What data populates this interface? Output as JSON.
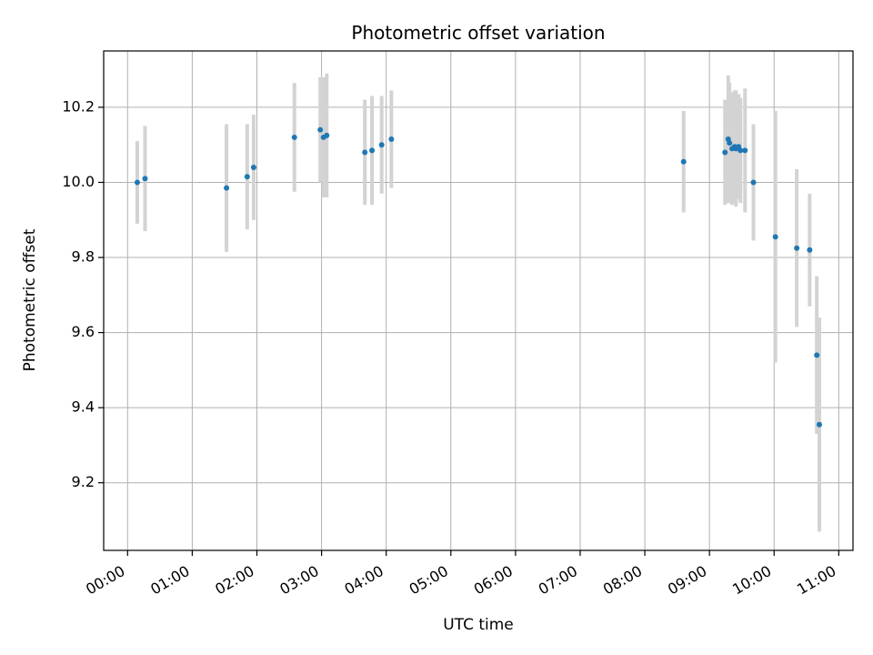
{
  "chart_data": {
    "type": "scatter",
    "title": "Photometric offset variation",
    "xlabel": "UTC time",
    "ylabel": "Photometric offset",
    "x_unit": "hours",
    "xlim": [
      -0.37,
      11.22
    ],
    "ylim": [
      9.02,
      10.35
    ],
    "x_ticks": [
      0,
      1,
      2,
      3,
      4,
      5,
      6,
      7,
      8,
      9,
      10,
      11
    ],
    "x_tick_labels": [
      "00:00",
      "01:00",
      "02:00",
      "03:00",
      "04:00",
      "05:00",
      "06:00",
      "07:00",
      "08:00",
      "09:00",
      "10:00",
      "11:00"
    ],
    "y_ticks": [
      9.2,
      9.4,
      9.6,
      9.8,
      10.0,
      10.2
    ],
    "y_tick_labels": [
      "9.2",
      "9.4",
      "9.6",
      "9.8",
      "10.0",
      "10.2"
    ],
    "grid": true,
    "colors": {
      "marker": "#1f77b4",
      "errorbar": "#d3d3d3",
      "grid": "#b0b0b0"
    },
    "points": [
      {
        "x": 0.15,
        "y": 10.0,
        "err": 0.11
      },
      {
        "x": 0.27,
        "y": 10.01,
        "err": 0.14
      },
      {
        "x": 1.53,
        "y": 9.985,
        "err": 0.17
      },
      {
        "x": 1.85,
        "y": 10.015,
        "err": 0.14
      },
      {
        "x": 1.95,
        "y": 10.04,
        "err": 0.14
      },
      {
        "x": 2.58,
        "y": 10.12,
        "err": 0.145
      },
      {
        "x": 2.98,
        "y": 10.14,
        "err": 0.14
      },
      {
        "x": 3.03,
        "y": 10.12,
        "err": 0.16
      },
      {
        "x": 3.08,
        "y": 10.125,
        "err": 0.165
      },
      {
        "x": 3.67,
        "y": 10.08,
        "err": 0.14
      },
      {
        "x": 3.78,
        "y": 10.085,
        "err": 0.145
      },
      {
        "x": 3.93,
        "y": 10.1,
        "err": 0.13
      },
      {
        "x": 4.08,
        "y": 10.115,
        "err": 0.13
      },
      {
        "x": 8.6,
        "y": 10.055,
        "err": 0.135
      },
      {
        "x": 9.24,
        "y": 10.08,
        "err": 0.14
      },
      {
        "x": 9.29,
        "y": 10.115,
        "err": 0.17
      },
      {
        "x": 9.31,
        "y": 10.105,
        "err": 0.16
      },
      {
        "x": 9.35,
        "y": 10.09,
        "err": 0.15
      },
      {
        "x": 9.39,
        "y": 10.095,
        "err": 0.15
      },
      {
        "x": 9.41,
        "y": 10.09,
        "err": 0.155
      },
      {
        "x": 9.45,
        "y": 10.095,
        "err": 0.14
      },
      {
        "x": 9.48,
        "y": 10.085,
        "err": 0.14
      },
      {
        "x": 9.55,
        "y": 10.085,
        "err": 0.165
      },
      {
        "x": 9.68,
        "y": 10.0,
        "err": 0.155
      },
      {
        "x": 10.02,
        "y": 9.855,
        "err": 0.335
      },
      {
        "x": 10.35,
        "y": 9.825,
        "err": 0.21
      },
      {
        "x": 10.55,
        "y": 9.82,
        "err": 0.15
      },
      {
        "x": 10.66,
        "y": 9.54,
        "err": 0.21
      },
      {
        "x": 10.7,
        "y": 9.355,
        "err": 0.285
      }
    ]
  }
}
